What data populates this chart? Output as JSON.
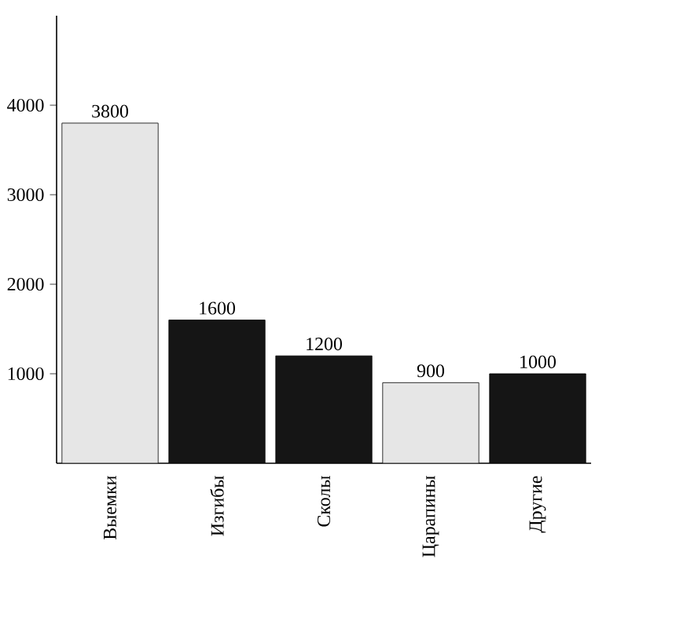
{
  "chart_data": {
    "type": "bar",
    "categories": [
      "Выемки",
      "Изгибы",
      "Сколы",
      "Царапины",
      "Другие"
    ],
    "values": [
      3800,
      1600,
      1200,
      900,
      1000
    ],
    "colors": [
      "#e6e6e6",
      "#151515",
      "#151515",
      "#e6e6e6",
      "#151515"
    ],
    "ylim": [
      0,
      5000
    ],
    "yticks": [
      1000,
      2000,
      3000,
      4000
    ],
    "data_labels": true
  }
}
